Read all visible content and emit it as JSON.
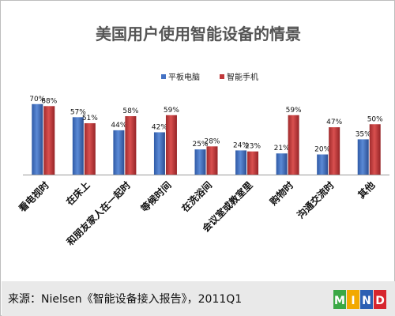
{
  "chart_data": {
    "type": "bar",
    "title": "美国用户使用智能设备的情景",
    "categories": [
      "看电视时",
      "在床上",
      "和朋友家人在一起时",
      "等候时间",
      "在洗浴间",
      "会议室或教室里",
      "购物时",
      "沟通交流时",
      "其他"
    ],
    "series": [
      {
        "name": "平板电脑",
        "values": [
          70,
          57,
          44,
          42,
          25,
          24,
          21,
          20,
          35
        ],
        "labels": [
          "70%",
          "57%",
          "44%",
          "42%",
          "25%",
          "24%",
          "21%",
          "20%",
          "35%"
        ]
      },
      {
        "name": "智能手机",
        "values": [
          68,
          51,
          58,
          59,
          28,
          23,
          59,
          47,
          50
        ],
        "labels": [
          "68%",
          "51%",
          "58%",
          "59%",
          "28%",
          "23%",
          "59%",
          "47%",
          "50%"
        ]
      }
    ],
    "colors": {
      "平板电脑": "#4472c4",
      "智能手机": "#c0383a"
    },
    "ylim": [
      0,
      80
    ],
    "grid": false,
    "legend_position": "top-center"
  },
  "footer": {
    "source": "来源：Nielsen《智能设备接入报告》，2011Q1",
    "logo_letters": [
      "M",
      "I",
      "N",
      "D"
    ]
  }
}
